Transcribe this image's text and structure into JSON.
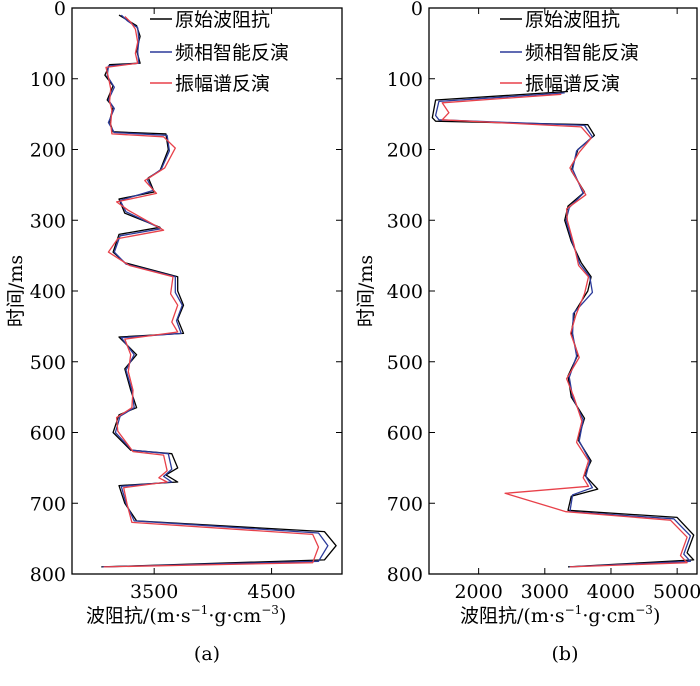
{
  "figure": {
    "panel_labels": [
      "(a)",
      "(b)"
    ]
  },
  "colors": {
    "original": "#000000",
    "fha": "#2b3a9a",
    "spec": "#e8414a"
  },
  "chart_data": [
    {
      "type": "line",
      "title": "",
      "panel": "(a)",
      "orientation": "vertical-depth",
      "xlabel": "波阻抗/(m·s",
      "ylabel": "时间/ms",
      "xlim": [
        2800,
        5100
      ],
      "ylim": [
        0,
        800
      ],
      "y_inverted": true,
      "xticks": [
        3500,
        4500
      ],
      "yticks": [
        0,
        100,
        200,
        300,
        400,
        500,
        600,
        700,
        800
      ],
      "legend_position": "top-right",
      "grid": false,
      "series": [
        {
          "name": "原始波阻抗",
          "color": "#000000",
          "points": [
            [
              3200,
              10
            ],
            [
              3250,
              15
            ],
            [
              3350,
              25
            ],
            [
              3380,
              40
            ],
            [
              3350,
              60
            ],
            [
              3380,
              78
            ],
            [
              3120,
              80
            ],
            [
              3080,
              95
            ],
            [
              3150,
              110
            ],
            [
              3100,
              130
            ],
            [
              3150,
              140
            ],
            [
              3120,
              160
            ],
            [
              3150,
              175
            ],
            [
              3600,
              178
            ],
            [
              3620,
              200
            ],
            [
              3550,
              230
            ],
            [
              3450,
              240
            ],
            [
              3500,
              260
            ],
            [
              3200,
              270
            ],
            [
              3250,
              290
            ],
            [
              3550,
              310
            ],
            [
              3200,
              320
            ],
            [
              3150,
              345
            ],
            [
              3250,
              360
            ],
            [
              3700,
              380
            ],
            [
              3700,
              400
            ],
            [
              3750,
              420
            ],
            [
              3700,
              440
            ],
            [
              3750,
              460
            ],
            [
              3200,
              465
            ],
            [
              3350,
              490
            ],
            [
              3250,
              510
            ],
            [
              3300,
              540
            ],
            [
              3350,
              565
            ],
            [
              3200,
              575
            ],
            [
              3150,
              600
            ],
            [
              3300,
              625
            ],
            [
              3650,
              630
            ],
            [
              3700,
              650
            ],
            [
              3600,
              660
            ],
            [
              3700,
              670
            ],
            [
              3200,
              675
            ],
            [
              3250,
              700
            ],
            [
              3350,
              725
            ],
            [
              4950,
              740
            ],
            [
              5050,
              760
            ],
            [
              4950,
              780
            ],
            [
              3050,
              790
            ]
          ]
        },
        {
          "name": "频相智能反演",
          "color": "#2b3a9a",
          "points": [
            [
              3220,
              10
            ],
            [
              3270,
              18
            ],
            [
              3360,
              28
            ],
            [
              3370,
              45
            ],
            [
              3360,
              62
            ],
            [
              3370,
              78
            ],
            [
              3110,
              82
            ],
            [
              3100,
              96
            ],
            [
              3160,
              112
            ],
            [
              3110,
              130
            ],
            [
              3160,
              142
            ],
            [
              3110,
              162
            ],
            [
              3160,
              176
            ],
            [
              3610,
              180
            ],
            [
              3630,
              202
            ],
            [
              3560,
              228
            ],
            [
              3440,
              242
            ],
            [
              3490,
              258
            ],
            [
              3210,
              272
            ],
            [
              3260,
              288
            ],
            [
              3560,
              312
            ],
            [
              3210,
              322
            ],
            [
              3160,
              345
            ],
            [
              3260,
              362
            ],
            [
              3680,
              380
            ],
            [
              3680,
              402
            ],
            [
              3740,
              420
            ],
            [
              3690,
              442
            ],
            [
              3730,
              460
            ],
            [
              3220,
              466
            ],
            [
              3330,
              490
            ],
            [
              3260,
              512
            ],
            [
              3310,
              540
            ],
            [
              3330,
              565
            ],
            [
              3210,
              577
            ],
            [
              3170,
              600
            ],
            [
              3310,
              625
            ],
            [
              3620,
              630
            ],
            [
              3650,
              652
            ],
            [
              3580,
              662
            ],
            [
              3650,
              670
            ],
            [
              3220,
              676
            ],
            [
              3260,
              700
            ],
            [
              3330,
              725
            ],
            [
              4900,
              742
            ],
            [
              4980,
              760
            ],
            [
              4900,
              782
            ],
            [
              3060,
              790
            ]
          ]
        },
        {
          "name": "振幅谱反演",
          "color": "#e8414a",
          "points": [
            [
              3250,
              12
            ],
            [
              3300,
              20
            ],
            [
              3340,
              30
            ],
            [
              3360,
              48
            ],
            [
              3340,
              64
            ],
            [
              3360,
              78
            ],
            [
              3090,
              84
            ],
            [
              3110,
              98
            ],
            [
              3130,
              114
            ],
            [
              3120,
              132
            ],
            [
              3140,
              144
            ],
            [
              3130,
              164
            ],
            [
              3140,
              178
            ],
            [
              3580,
              182
            ],
            [
              3680,
              198
            ],
            [
              3590,
              226
            ],
            [
              3420,
              244
            ],
            [
              3520,
              262
            ],
            [
              3180,
              274
            ],
            [
              3280,
              286
            ],
            [
              3580,
              314
            ],
            [
              3190,
              326
            ],
            [
              3110,
              345
            ],
            [
              3290,
              364
            ],
            [
              3660,
              380
            ],
            [
              3640,
              404
            ],
            [
              3700,
              420
            ],
            [
              3650,
              444
            ],
            [
              3700,
              458
            ],
            [
              3250,
              468
            ],
            [
              3300,
              490
            ],
            [
              3280,
              514
            ],
            [
              3320,
              540
            ],
            [
              3310,
              565
            ],
            [
              3180,
              579
            ],
            [
              3190,
              598
            ],
            [
              3320,
              627
            ],
            [
              3580,
              632
            ],
            [
              3610,
              654
            ],
            [
              3540,
              664
            ],
            [
              3610,
              670
            ],
            [
              3240,
              678
            ],
            [
              3270,
              702
            ],
            [
              3310,
              727
            ],
            [
              4850,
              744
            ],
            [
              4900,
              762
            ],
            [
              4850,
              784
            ],
            [
              3070,
              790
            ]
          ]
        }
      ]
    },
    {
      "type": "line",
      "title": "",
      "panel": "(b)",
      "orientation": "vertical-depth",
      "xlabel": "波阻抗/(m·s",
      "ylabel": "时间/ms",
      "xlim": [
        1250,
        5300
      ],
      "ylim": [
        0,
        800
      ],
      "y_inverted": true,
      "xticks": [
        2000,
        3000,
        4000,
        5000
      ],
      "yticks": [
        0,
        100,
        200,
        300,
        400,
        500,
        600,
        700,
        800
      ],
      "legend_position": "top-right",
      "grid": false,
      "series": [
        {
          "name": "原始波阻抗",
          "color": "#000000",
          "points": [
            [
              3350,
              118
            ],
            [
              1350,
              130
            ],
            [
              1300,
              155
            ],
            [
              1350,
              160
            ],
            [
              3650,
              165
            ],
            [
              3750,
              180
            ],
            [
              3500,
              200
            ],
            [
              3400,
              230
            ],
            [
              3600,
              260
            ],
            [
              3350,
              280
            ],
            [
              3300,
              300
            ],
            [
              3400,
              330
            ],
            [
              3550,
              360
            ],
            [
              3700,
              380
            ],
            [
              3650,
              400
            ],
            [
              3450,
              430
            ],
            [
              3400,
              460
            ],
            [
              3500,
              490
            ],
            [
              3350,
              520
            ],
            [
              3400,
              550
            ],
            [
              3600,
              580
            ],
            [
              3500,
              610
            ],
            [
              3700,
              640
            ],
            [
              3600,
              660
            ],
            [
              3800,
              680
            ],
            [
              3400,
              690
            ],
            [
              3350,
              710
            ],
            [
              5000,
              720
            ],
            [
              5250,
              745
            ],
            [
              5150,
              770
            ],
            [
              5250,
              780
            ],
            [
              3350,
              790
            ]
          ]
        },
        {
          "name": "频相智能反演",
          "color": "#2b3a9a",
          "points": [
            [
              3300,
              120
            ],
            [
              1400,
              132
            ],
            [
              1350,
              152
            ],
            [
              1400,
              158
            ],
            [
              3600,
              166
            ],
            [
              3720,
              182
            ],
            [
              3480,
              202
            ],
            [
              3420,
              228
            ],
            [
              3580,
              262
            ],
            [
              3370,
              282
            ],
            [
              3320,
              300
            ],
            [
              3420,
              332
            ],
            [
              3530,
              362
            ],
            [
              3680,
              380
            ],
            [
              3720,
              402
            ],
            [
              3430,
              432
            ],
            [
              3420,
              460
            ],
            [
              3480,
              492
            ],
            [
              3370,
              522
            ],
            [
              3420,
              550
            ],
            [
              3580,
              582
            ],
            [
              3520,
              612
            ],
            [
              3680,
              640
            ],
            [
              3620,
              662
            ],
            [
              3720,
              678
            ],
            [
              3420,
              688
            ],
            [
              3380,
              712
            ],
            [
              4950,
              722
            ],
            [
              5200,
              746
            ],
            [
              5100,
              772
            ],
            [
              5200,
              782
            ],
            [
              3370,
              790
            ]
          ]
        },
        {
          "name": "振幅谱反演",
          "color": "#e8414a",
          "points": [
            [
              3250,
              122
            ],
            [
              1450,
              134
            ],
            [
              1550,
              148
            ],
            [
              1450,
              158
            ],
            [
              3550,
              168
            ],
            [
              3700,
              184
            ],
            [
              3520,
              204
            ],
            [
              3380,
              226
            ],
            [
              3620,
              264
            ],
            [
              3330,
              284
            ],
            [
              3340,
              300
            ],
            [
              3440,
              334
            ],
            [
              3510,
              364
            ],
            [
              3660,
              380
            ],
            [
              3600,
              404
            ],
            [
              3470,
              434
            ],
            [
              3390,
              460
            ],
            [
              3520,
              494
            ],
            [
              3330,
              524
            ],
            [
              3440,
              550
            ],
            [
              3560,
              584
            ],
            [
              3480,
              614
            ],
            [
              3660,
              640
            ],
            [
              3580,
              664
            ],
            [
              3660,
              676
            ],
            [
              2400,
              686
            ],
            [
              3320,
              712
            ],
            [
              4900,
              724
            ],
            [
              5150,
              748
            ],
            [
              5050,
              774
            ],
            [
              5150,
              784
            ],
            [
              3380,
              790
            ]
          ]
        }
      ]
    }
  ]
}
